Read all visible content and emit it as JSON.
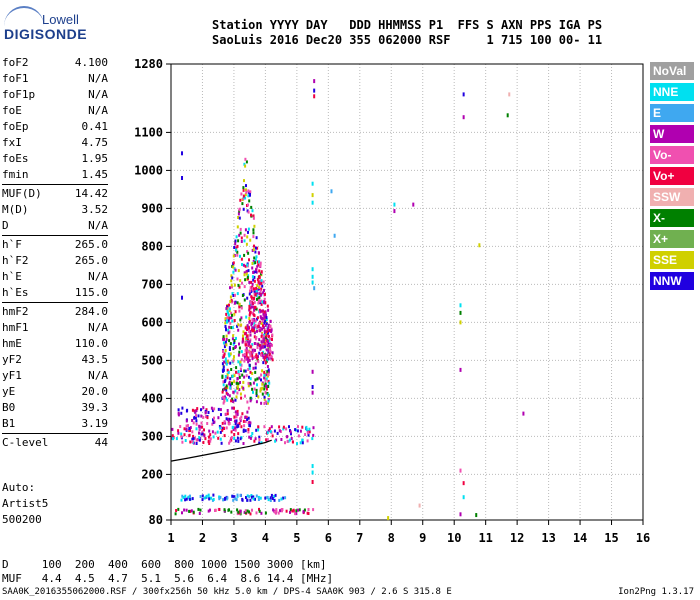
{
  "logo": {
    "line1": "Lowell",
    "line2": "DIGISONDE"
  },
  "header": {
    "line1": "Station YYYY DAY   DDD HHMMSS P1  FFS S AXN PPS IGA PS",
    "line2": "SaoLuis 2016 Dec20 355 062000 RSF     1 715 100 00- 11"
  },
  "params": [
    [
      {
        "label": "foF2",
        "value": "4.100"
      },
      {
        "label": "foF1",
        "value": "N/A"
      },
      {
        "label": "foF1p",
        "value": "N/A"
      },
      {
        "label": "foE",
        "value": "N/A"
      },
      {
        "label": "foEp",
        "value": "0.41"
      },
      {
        "label": "fxI",
        "value": "4.75"
      },
      {
        "label": "foEs",
        "value": "1.95"
      },
      {
        "label": "fmin",
        "value": "1.45"
      }
    ],
    [
      {
        "label": "MUF(D)",
        "value": "14.42"
      },
      {
        "label": "M(D)",
        "value": "3.52"
      },
      {
        "label": "D",
        "value": "N/A"
      }
    ],
    [
      {
        "label": "h`F",
        "value": "265.0"
      },
      {
        "label": "h`F2",
        "value": "265.0"
      },
      {
        "label": "h`E",
        "value": "N/A"
      },
      {
        "label": "h`Es",
        "value": "115.0"
      }
    ],
    [
      {
        "label": "hmF2",
        "value": "284.0"
      },
      {
        "label": "hmF1",
        "value": "N/A"
      },
      {
        "label": "hmE",
        "value": "110.0"
      },
      {
        "label": "yF2",
        "value": "43.5"
      },
      {
        "label": "yF1",
        "value": "N/A"
      },
      {
        "label": "yE",
        "value": "20.0"
      },
      {
        "label": "B0",
        "value": "39.3"
      },
      {
        "label": "B1",
        "value": "3.19"
      }
    ],
    [
      {
        "label": "C-level",
        "value": "44"
      }
    ]
  ],
  "extra": [
    "Auto:",
    "Artist5",
    "500200"
  ],
  "muf_table": {
    "d_line": "D     100  200  400  600  800 1000 1500 3000 [km]",
    "muf_line": "MUF   4.4  4.5  4.7  5.1  5.6  6.4  8.6 14.4 [MHz]"
  },
  "footer": {
    "left": "SAA0K_2016355062000.RSF / 300fx256h 50 kHz 5.0 km / DPS-4 SAA0K 903 / 2.6 S 315.8 E",
    "right": "Ion2Png 1.3.17"
  },
  "legend": [
    {
      "label": "NoVal",
      "color": "#a0a0a0"
    },
    {
      "label": "NNE",
      "color": "#00e0f0"
    },
    {
      "label": "E",
      "color": "#3fa8f0"
    },
    {
      "label": "W",
      "color": "#b000b0"
    },
    {
      "label": "Vo-",
      "color": "#f050b0"
    },
    {
      "label": "Vo+",
      "color": "#f00040"
    },
    {
      "label": "SSW",
      "color": "#f0b0b0"
    },
    {
      "label": "X-",
      "color": "#008000"
    },
    {
      "label": "X+",
      "color": "#70b050"
    },
    {
      "label": "SSE",
      "color": "#d0d000"
    },
    {
      "label": "NNW",
      "color": "#2000e0"
    }
  ],
  "chart_data": {
    "type": "scatter",
    "title": "",
    "xlabel": "",
    "ylabel": "",
    "xlim": [
      1,
      16
    ],
    "ylim": [
      80,
      1280
    ],
    "x_ticks": [
      1,
      2,
      3,
      4,
      5,
      6,
      7,
      8,
      9,
      10,
      11,
      12,
      13,
      14,
      15,
      16
    ],
    "y_ticks": [
      80,
      200,
      300,
      400,
      500,
      600,
      700,
      800,
      900,
      1000,
      1100,
      1280
    ],
    "grid": true,
    "curve": {
      "x": [
        1.0,
        1.5,
        2.0,
        2.5,
        3.0,
        3.5,
        4.0,
        4.2
      ],
      "y": [
        235,
        242,
        250,
        258,
        266,
        274,
        284,
        290
      ]
    },
    "clusters": [
      {
        "x": [
          1.2,
          3.5
        ],
        "y": [
          320,
          380
        ],
        "colors": [
          "#f00040",
          "#f050b0",
          "#b000b0",
          "#2000e0"
        ]
      },
      {
        "x": [
          2.6,
          4.1
        ],
        "y": [
          390,
          1060
        ],
        "colors": [
          "#b000b0",
          "#f00040",
          "#2000e0",
          "#f050b0",
          "#008000",
          "#d0d000",
          "#00e0f0"
        ]
      },
      {
        "x": [
          3.3,
          4.2
        ],
        "y": [
          500,
          800
        ],
        "colors": [
          "#b000b0",
          "#f00040",
          "#f050b0"
        ]
      },
      {
        "x": [
          1.0,
          5.5
        ],
        "y": [
          285,
          330
        ],
        "colors": [
          "#f00040",
          "#b000b0",
          "#2000e0",
          "#f050b0",
          "#00e0f0"
        ]
      },
      {
        "x": [
          1.2,
          4.6
        ],
        "y": [
          135,
          150
        ],
        "colors": [
          "#2000e0",
          "#3fa8f0",
          "#00e0f0"
        ]
      },
      {
        "x": [
          1.1,
          5.5
        ],
        "y": [
          100,
          112
        ],
        "colors": [
          "#f00040",
          "#f050b0",
          "#b000b0",
          "#008000"
        ]
      }
    ],
    "points": [
      {
        "x": 5.55,
        "y": 1235,
        "c": "#b000b0"
      },
      {
        "x": 5.55,
        "y": 1210,
        "c": "#2000e0"
      },
      {
        "x": 5.55,
        "y": 1195,
        "c": "#f00040"
      },
      {
        "x": 10.3,
        "y": 1200,
        "c": "#2000e0"
      },
      {
        "x": 10.3,
        "y": 1140,
        "c": "#b000b0"
      },
      {
        "x": 11.7,
        "y": 1145,
        "c": "#008000"
      },
      {
        "x": 11.75,
        "y": 1200,
        "c": "#f0b0b0"
      },
      {
        "x": 1.35,
        "y": 1045,
        "c": "#2000e0"
      },
      {
        "x": 1.35,
        "y": 980,
        "c": "#2000e0"
      },
      {
        "x": 5.5,
        "y": 965,
        "c": "#00e0f0"
      },
      {
        "x": 5.5,
        "y": 935,
        "c": "#d0d000"
      },
      {
        "x": 5.5,
        "y": 915,
        "c": "#00e0f0"
      },
      {
        "x": 6.1,
        "y": 945,
        "c": "#3fa8f0"
      },
      {
        "x": 8.1,
        "y": 910,
        "c": "#00e0f0"
      },
      {
        "x": 8.1,
        "y": 893,
        "c": "#b000b0"
      },
      {
        "x": 8.7,
        "y": 910,
        "c": "#b000b0"
      },
      {
        "x": 6.2,
        "y": 828,
        "c": "#3fa8f0"
      },
      {
        "x": 10.8,
        "y": 803,
        "c": "#d0d000"
      },
      {
        "x": 5.5,
        "y": 740,
        "c": "#00e0f0"
      },
      {
        "x": 5.5,
        "y": 720,
        "c": "#00e0f0"
      },
      {
        "x": 5.5,
        "y": 705,
        "c": "#00e0f0"
      },
      {
        "x": 5.55,
        "y": 690,
        "c": "#3fa8f0"
      },
      {
        "x": 10.2,
        "y": 645,
        "c": "#00e0f0"
      },
      {
        "x": 10.2,
        "y": 625,
        "c": "#008000"
      },
      {
        "x": 10.2,
        "y": 600,
        "c": "#d0d000"
      },
      {
        "x": 10.2,
        "y": 475,
        "c": "#b000b0"
      },
      {
        "x": 5.5,
        "y": 470,
        "c": "#b000b0"
      },
      {
        "x": 5.5,
        "y": 430,
        "c": "#2000e0"
      },
      {
        "x": 5.5,
        "y": 415,
        "c": "#b000b0"
      },
      {
        "x": 12.2,
        "y": 360,
        "c": "#b000b0"
      },
      {
        "x": 5.5,
        "y": 222,
        "c": "#00e0f0"
      },
      {
        "x": 5.5,
        "y": 205,
        "c": "#00e0f0"
      },
      {
        "x": 5.5,
        "y": 180,
        "c": "#f00040"
      },
      {
        "x": 10.2,
        "y": 210,
        "c": "#f050b0"
      },
      {
        "x": 10.3,
        "y": 177,
        "c": "#f00040"
      },
      {
        "x": 10.3,
        "y": 140,
        "c": "#00e0f0"
      },
      {
        "x": 10.2,
        "y": 95,
        "c": "#b000b0"
      },
      {
        "x": 10.7,
        "y": 93,
        "c": "#008000"
      },
      {
        "x": 7.9,
        "y": 85,
        "c": "#d0d000"
      },
      {
        "x": 8.9,
        "y": 118,
        "c": "#f0b0b0"
      },
      {
        "x": 1.35,
        "y": 665,
        "c": "#2000e0"
      }
    ]
  }
}
